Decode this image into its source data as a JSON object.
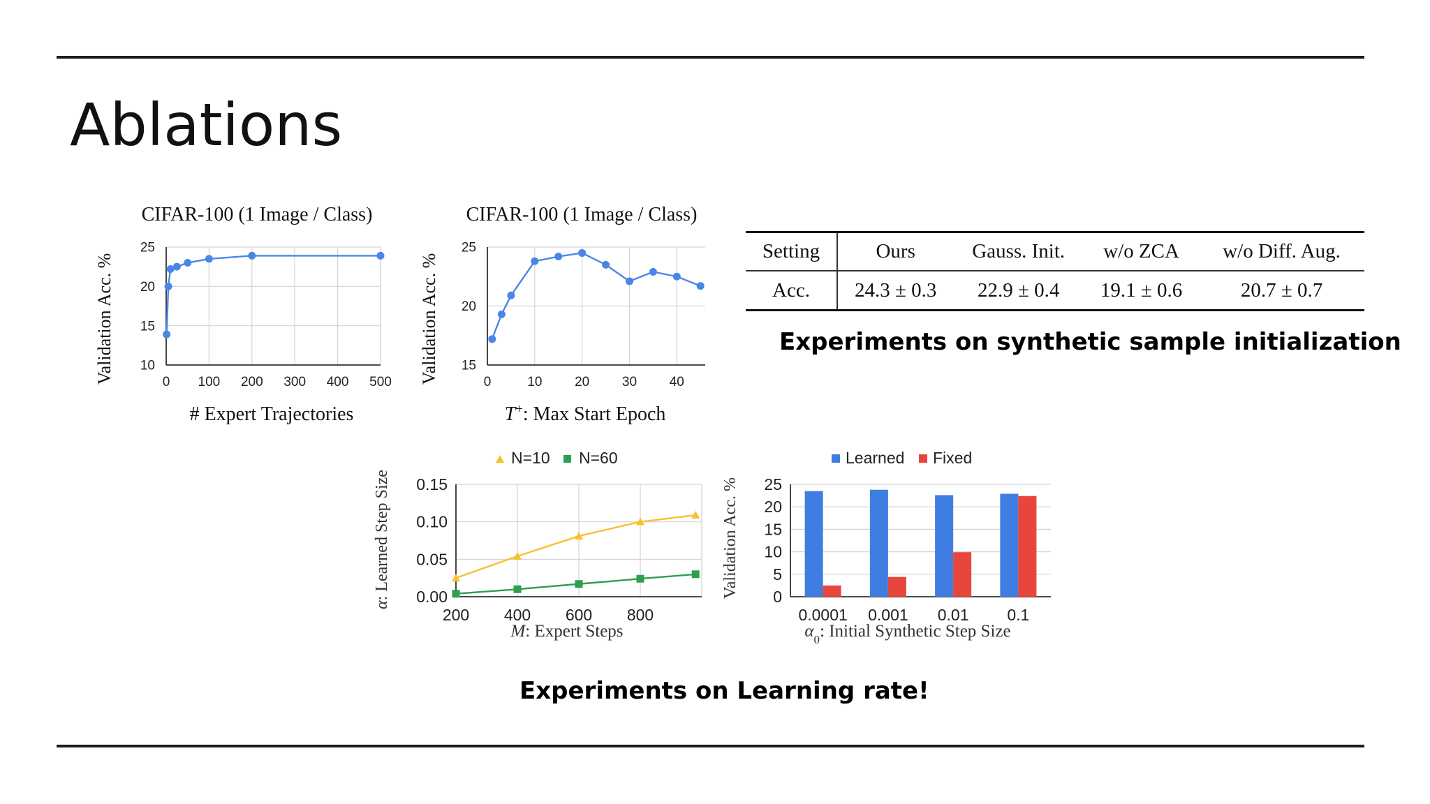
{
  "slide": {
    "title": "Ablations",
    "caption_top": "Experiments on synthetic sample initialization",
    "caption_bottom": "Experiments on Learning rate!"
  },
  "colors": {
    "blue": "#4a86e8",
    "blue_bar": "#3f7ee0",
    "red": "#e8453c",
    "yellow": "#f6c12e",
    "green": "#2e9e4f",
    "grid": "#d3d3d3"
  },
  "table": {
    "headers": [
      "Setting",
      "Ours",
      "Gauss. Init.",
      "w/o ZCA",
      "w/o Diff. Aug."
    ],
    "row": [
      "Acc.",
      "24.3 ± 0.3",
      "22.9 ± 0.4",
      "19.1 ± 0.6",
      "20.7 ± 0.7"
    ]
  },
  "chart_data": [
    {
      "type": "line",
      "title": "CIFAR-100 (1 Image / Class)",
      "xlabel": "# Expert Trajectories",
      "ylabel": "Validation Acc. %",
      "x": [
        1,
        5,
        10,
        25,
        50,
        100,
        200,
        500
      ],
      "y": [
        13.9,
        20.0,
        22.2,
        22.5,
        23.0,
        23.5,
        23.9,
        23.9
      ],
      "xlim": [
        0,
        500
      ],
      "ylim": [
        10,
        25
      ],
      "xticks": [
        0,
        100,
        200,
        300,
        400,
        500
      ],
      "yticks": [
        10,
        15,
        20,
        25
      ],
      "xtick_labels": [
        "0",
        "100",
        "200",
        "300",
        "400",
        "500"
      ],
      "ytick_labels": [
        "10",
        "15",
        "20",
        "25"
      ],
      "grid": true
    },
    {
      "type": "line",
      "title": "CIFAR-100 (1 Image / Class)",
      "xlabel_symbol": "T",
      "xlabel_sup": "+",
      "xlabel": ": Max Start Epoch",
      "ylabel": "Validation Acc. %",
      "x": [
        1,
        3,
        5,
        10,
        15,
        20,
        25,
        30,
        35,
        40,
        45
      ],
      "y": [
        17.2,
        19.3,
        20.9,
        23.8,
        24.2,
        24.5,
        23.5,
        22.1,
        22.9,
        22.5,
        21.7
      ],
      "xlim": [
        0,
        46
      ],
      "ylim": [
        15,
        25
      ],
      "xticks": [
        0,
        10,
        20,
        30,
        40
      ],
      "yticks": [
        15,
        20,
        25
      ],
      "xtick_labels": [
        "0",
        "10",
        "20",
        "30",
        "40"
      ],
      "ytick_labels": [
        "15",
        "20",
        "25"
      ],
      "grid": true
    },
    {
      "type": "line",
      "xlabel_symbol": "M",
      "xlabel": ": Expert Steps",
      "ylabel_symbol": "α",
      "ylabel": ": Learned Step Size",
      "xlim": [
        200,
        1000
      ],
      "ylim": [
        0,
        0.15
      ],
      "xticks": [
        200,
        400,
        600,
        800
      ],
      "yticks": [
        0,
        0.05,
        0.1,
        0.15
      ],
      "xtick_labels": [
        "200",
        "400",
        "600",
        "800"
      ],
      "ytick_labels": [
        "0.00",
        "0.05",
        "0.10",
        "0.15"
      ],
      "series": [
        {
          "name": "N=10",
          "marker": "triangle",
          "x": [
            200,
            400,
            600,
            800,
            980
          ],
          "y": [
            0.025,
            0.054,
            0.081,
            0.1,
            0.109
          ]
        },
        {
          "name": "N=60",
          "marker": "square",
          "x": [
            200,
            400,
            600,
            800,
            980
          ],
          "y": [
            0.004,
            0.01,
            0.017,
            0.024,
            0.03
          ]
        }
      ],
      "legend": "top-center",
      "grid": true
    },
    {
      "type": "bar",
      "categories": [
        "0.0001",
        "0.001",
        "0.01",
        "0.1"
      ],
      "xlabel_symbol": "α",
      "xlabel_sub": "0",
      "xlabel": ": Initial Synthetic Step Size",
      "ylabel": "Validation Acc. %",
      "ylim": [
        0,
        25
      ],
      "yticks": [
        0,
        5,
        10,
        15,
        20,
        25
      ],
      "ytick_labels": [
        "0",
        "5",
        "10",
        "15",
        "20",
        "25"
      ],
      "series": [
        {
          "name": "Learned",
          "values": [
            23.5,
            23.8,
            22.6,
            22.9
          ]
        },
        {
          "name": "Fixed",
          "values": [
            2.5,
            4.4,
            9.9,
            22.4
          ]
        }
      ],
      "legend": "top-center",
      "grid": true
    }
  ]
}
